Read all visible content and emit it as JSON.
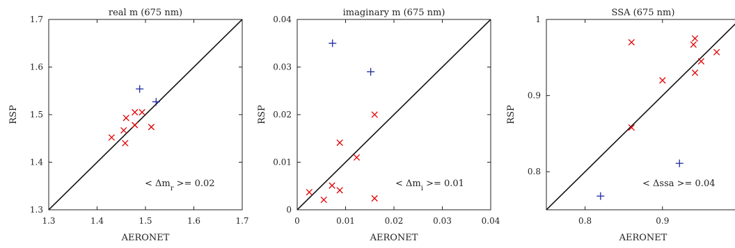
{
  "chart_data": [
    {
      "type": "scatter",
      "title": "real m (675 nm)",
      "xlabel": "AERONET",
      "ylabel": "RSP",
      "xlim": [
        1.3,
        1.7
      ],
      "ylim": [
        1.3,
        1.7
      ],
      "xticks": [
        "1.3",
        "1.4",
        "1.5",
        "1.6",
        "1.7"
      ],
      "yticks": [
        "1.3",
        "1.4",
        "1.5",
        "1.6",
        "1.7"
      ],
      "annotation": "< Δm_r >= 0.02",
      "identity_line": true,
      "series": [
        {
          "marker": "cross",
          "color": "#e00000",
          "points": [
            [
              1.43,
              1.452
            ],
            [
              1.455,
              1.467
            ],
            [
              1.458,
              1.44
            ],
            [
              1.46,
              1.493
            ],
            [
              1.478,
              1.505
            ],
            [
              1.478,
              1.478
            ],
            [
              1.493,
              1.505
            ],
            [
              1.512,
              1.474
            ]
          ]
        },
        {
          "marker": "plus",
          "color": "#1c2aa0",
          "points": [
            [
              1.488,
              1.554
            ],
            [
              1.522,
              1.527
            ]
          ]
        }
      ]
    },
    {
      "type": "scatter",
      "title": "imaginary m (675 nm)",
      "xlabel": "AERONET",
      "ylabel": "RSP",
      "xlim": [
        0,
        0.04
      ],
      "ylim": [
        0,
        0.04
      ],
      "xticks": [
        "0",
        "0.01",
        "0.02",
        "0.03",
        "0.04"
      ],
      "yticks": [
        "0",
        "0.01",
        "0.02",
        "0.03",
        "0.04"
      ],
      "annotation": "< Δm_i >= 0.01",
      "identity_line": true,
      "series": [
        {
          "marker": "cross",
          "color": "#e00000",
          "points": [
            [
              0.0025,
              0.0037
            ],
            [
              0.0055,
              0.0021
            ],
            [
              0.0072,
              0.0051
            ],
            [
              0.0088,
              0.0041
            ],
            [
              0.0088,
              0.0141
            ],
            [
              0.0123,
              0.011
            ],
            [
              0.016,
              0.02
            ],
            [
              0.016,
              0.0024
            ]
          ]
        },
        {
          "marker": "plus",
          "color": "#1c2aa0",
          "points": [
            [
              0.0073,
              0.035
            ],
            [
              0.0152,
              0.029
            ]
          ]
        }
      ]
    },
    {
      "type": "scatter",
      "title": "SSA (675 nm)",
      "xlabel": "AERONET",
      "ylabel": "RSP",
      "xlim": [
        0.75,
        1.0
      ],
      "ylim": [
        0.75,
        1.0
      ],
      "xticks": [
        "0.8",
        "0.9"
      ],
      "yticks": [
        "0.8",
        "0.9",
        "1"
      ],
      "annotation": "< Δssa >= 0.04",
      "identity_line": true,
      "series": [
        {
          "marker": "cross",
          "color": "#e00000",
          "points": [
            [
              0.86,
              0.97
            ],
            [
              0.86,
              0.858
            ],
            [
              0.9,
              0.92
            ],
            [
              0.94,
              0.967
            ],
            [
              0.942,
              0.975
            ],
            [
              0.942,
              0.93
            ],
            [
              0.95,
              0.945
            ],
            [
              0.97,
              0.957
            ]
          ]
        },
        {
          "marker": "plus",
          "color": "#1c2aa0",
          "points": [
            [
              0.82,
              0.768
            ],
            [
              0.922,
              0.811
            ]
          ]
        }
      ]
    }
  ]
}
